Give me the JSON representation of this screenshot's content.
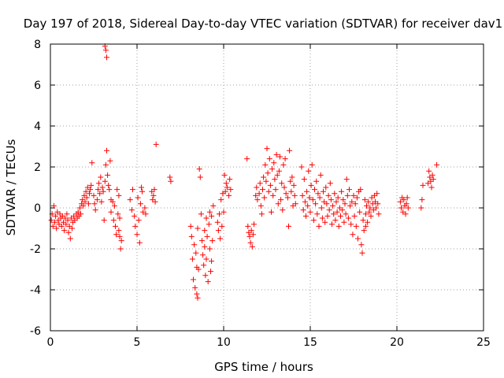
{
  "chart_data": {
    "type": "scatter",
    "title": "Day 197 of 2018, Sidereal Day-to-day VTEC variation (SDTVAR) for receiver dav1",
    "xlabel": "GPS time / hours",
    "ylabel": "SDTVAR / TECUs",
    "xlim": [
      0,
      25
    ],
    "ylim": [
      -6,
      8
    ],
    "xticks": [
      "0",
      "5",
      "10",
      "15",
      "20",
      "25"
    ],
    "yticks": [
      "-6",
      "-4",
      "-2",
      "0",
      "2",
      "4",
      "6",
      "8"
    ],
    "grid": true,
    "marker": "+",
    "color": "#ff0000",
    "series": [
      {
        "name": "dav1",
        "points": [
          [
            0.05,
            -0.6
          ],
          [
            0.1,
            -0.3
          ],
          [
            0.15,
            -0.9
          ],
          [
            0.2,
            0.1
          ],
          [
            0.25,
            -0.7
          ],
          [
            0.3,
            -0.4
          ],
          [
            0.35,
            -1.0
          ],
          [
            0.4,
            -0.2
          ],
          [
            0.45,
            -0.6
          ],
          [
            0.5,
            -0.8
          ],
          [
            0.55,
            -0.3
          ],
          [
            0.6,
            -0.5
          ],
          [
            0.65,
            -0.9
          ],
          [
            0.7,
            -0.4
          ],
          [
            0.75,
            -0.7
          ],
          [
            0.8,
            -1.1
          ],
          [
            0.85,
            -0.5
          ],
          [
            0.9,
            -0.8
          ],
          [
            0.95,
            -0.3
          ],
          [
            1.0,
            -0.6
          ],
          [
            1.05,
            -1.2
          ],
          [
            1.1,
            -0.9
          ],
          [
            1.15,
            -1.5
          ],
          [
            1.2,
            -0.5
          ],
          [
            1.25,
            -1.0
          ],
          [
            1.3,
            -0.7
          ],
          [
            1.35,
            -0.4
          ],
          [
            1.4,
            -0.6
          ],
          [
            1.5,
            -0.3
          ],
          [
            1.55,
            -0.5
          ],
          [
            1.6,
            -0.2
          ],
          [
            1.65,
            -0.4
          ],
          [
            1.7,
            0.0
          ],
          [
            1.75,
            -0.3
          ],
          [
            1.8,
            0.2
          ],
          [
            1.85,
            0.4
          ],
          [
            1.9,
            0.1
          ],
          [
            1.95,
            0.6
          ],
          [
            2.0,
            0.3
          ],
          [
            2.05,
            0.8
          ],
          [
            2.1,
            0.5
          ],
          [
            2.15,
            1.0
          ],
          [
            2.2,
            0.2
          ],
          [
            2.25,
            0.7
          ],
          [
            2.3,
            0.9
          ],
          [
            2.35,
            1.1
          ],
          [
            2.4,
            2.2
          ],
          [
            2.5,
            0.6
          ],
          [
            2.55,
            0.2
          ],
          [
            2.6,
            -0.1
          ],
          [
            2.7,
            0.4
          ],
          [
            2.75,
            0.9
          ],
          [
            2.8,
            1.2
          ],
          [
            2.85,
            0.7
          ],
          [
            2.9,
            1.5
          ],
          [
            2.95,
            0.3
          ],
          [
            3.0,
            1.0
          ],
          [
            3.05,
            0.8
          ],
          [
            3.1,
            -0.6
          ],
          [
            3.15,
            1.3
          ],
          [
            3.2,
            2.1
          ],
          [
            3.25,
            2.8
          ],
          [
            3.3,
            1.6
          ],
          [
            3.35,
            1.1
          ],
          [
            3.4,
            0.9
          ],
          [
            3.45,
            2.3
          ],
          [
            3.5,
            0.4
          ],
          [
            3.15,
            7.9
          ],
          [
            3.2,
            7.7
          ],
          [
            3.25,
            7.35
          ],
          [
            3.5,
            -0.2
          ],
          [
            3.6,
            0.3
          ],
          [
            3.65,
            -0.6
          ],
          [
            3.7,
            0.1
          ],
          [
            3.75,
            -0.9
          ],
          [
            3.8,
            -1.3
          ],
          [
            3.85,
            0.9
          ],
          [
            3.9,
            -0.3
          ],
          [
            3.95,
            -1.1
          ],
          [
            4.0,
            -0.5
          ],
          [
            4.05,
            -2.0
          ],
          [
            4.1,
            -1.6
          ],
          [
            3.95,
            0.6
          ],
          [
            4.0,
            -1.4
          ],
          [
            4.6,
            0.4
          ],
          [
            4.7,
            -0.1
          ],
          [
            4.75,
            0.9
          ],
          [
            4.85,
            -0.4
          ],
          [
            4.9,
            -0.9
          ],
          [
            5.0,
            -1.3
          ],
          [
            5.05,
            0.5
          ],
          [
            5.1,
            -0.6
          ],
          [
            5.15,
            -1.7
          ],
          [
            5.2,
            0.2
          ],
          [
            5.25,
            1.0
          ],
          [
            5.3,
            0.8
          ],
          [
            5.35,
            -0.2
          ],
          [
            5.45,
            0.0
          ],
          [
            5.5,
            -0.3
          ],
          [
            5.85,
            0.8
          ],
          [
            5.9,
            0.4
          ],
          [
            5.95,
            0.6
          ],
          [
            6.0,
            0.9
          ],
          [
            6.05,
            0.3
          ],
          [
            6.1,
            3.1
          ],
          [
            6.9,
            1.5
          ],
          [
            6.95,
            1.3
          ],
          [
            8.1,
            -0.9
          ],
          [
            8.15,
            -1.4
          ],
          [
            8.2,
            -2.5
          ],
          [
            8.25,
            -3.5
          ],
          [
            8.3,
            -1.8
          ],
          [
            8.35,
            -3.9
          ],
          [
            8.4,
            -2.2
          ],
          [
            8.45,
            -4.2
          ],
          [
            8.5,
            -4.4
          ],
          [
            8.55,
            -3.0
          ],
          [
            8.5,
            -1.0
          ],
          [
            8.45,
            -2.9
          ],
          [
            8.6,
            1.9
          ],
          [
            8.65,
            1.5
          ],
          [
            8.7,
            -0.3
          ],
          [
            8.75,
            -1.6
          ],
          [
            8.8,
            -2.3
          ],
          [
            8.85,
            -2.8
          ],
          [
            8.9,
            -1.9
          ],
          [
            8.95,
            -3.3
          ],
          [
            9.0,
            -2.5
          ],
          [
            9.05,
            -1.4
          ],
          [
            9.1,
            -3.6
          ],
          [
            9.15,
            -0.8
          ],
          [
            9.2,
            -2.0
          ],
          [
            9.25,
            -3.1
          ],
          [
            9.3,
            -0.4
          ],
          [
            9.35,
            -1.6
          ],
          [
            9.4,
            0.1
          ],
          [
            9.0,
            -0.5
          ],
          [
            8.9,
            -1.1
          ],
          [
            9.2,
            -0.2
          ],
          [
            9.3,
            -2.6
          ],
          [
            9.65,
            -0.7
          ],
          [
            9.7,
            -1.1
          ],
          [
            9.75,
            -0.3
          ],
          [
            9.8,
            -1.5
          ],
          [
            9.85,
            0.4
          ],
          [
            9.9,
            -0.9
          ],
          [
            9.95,
            0.7
          ],
          [
            10.0,
            -0.2
          ],
          [
            10.05,
            1.6
          ],
          [
            10.1,
            0.8
          ],
          [
            10.15,
            1.2
          ],
          [
            10.2,
            1.0
          ],
          [
            10.3,
            0.6
          ],
          [
            10.35,
            1.4
          ],
          [
            10.4,
            0.9
          ],
          [
            11.35,
            2.4
          ],
          [
            11.4,
            -0.9
          ],
          [
            11.45,
            -1.2
          ],
          [
            11.5,
            -1.4
          ],
          [
            11.55,
            -1.7
          ],
          [
            11.6,
            -1.1
          ],
          [
            11.65,
            -1.9
          ],
          [
            11.7,
            -1.3
          ],
          [
            11.75,
            -0.8
          ],
          [
            11.85,
            0.6
          ],
          [
            11.9,
            1.0
          ],
          [
            11.95,
            0.4
          ],
          [
            12.05,
            0.7
          ],
          [
            12.1,
            1.2
          ],
          [
            12.15,
            0.1
          ],
          [
            12.2,
            -0.3
          ],
          [
            12.25,
            0.9
          ],
          [
            12.3,
            1.5
          ],
          [
            12.35,
            0.5
          ],
          [
            12.4,
            2.1
          ],
          [
            12.45,
            1.3
          ],
          [
            12.5,
            2.9
          ],
          [
            12.55,
            1.7
          ],
          [
            12.6,
            0.8
          ],
          [
            12.65,
            2.4
          ],
          [
            12.7,
            1.1
          ],
          [
            12.75,
            -0.2
          ],
          [
            12.8,
            1.9
          ],
          [
            12.85,
            0.6
          ],
          [
            12.9,
            2.2
          ],
          [
            12.95,
            1.4
          ],
          [
            13.0,
            0.9
          ],
          [
            13.05,
            2.6
          ],
          [
            13.1,
            1.6
          ],
          [
            13.15,
            0.2
          ],
          [
            13.2,
            1.8
          ],
          [
            13.25,
            2.5
          ],
          [
            13.3,
            0.4
          ],
          [
            13.35,
            1.2
          ],
          [
            13.4,
            -0.1
          ],
          [
            13.45,
            2.1
          ],
          [
            13.5,
            1.0
          ],
          [
            13.55,
            2.4
          ],
          [
            13.6,
            0.7
          ],
          [
            13.7,
            0.5
          ],
          [
            13.75,
            -0.9
          ],
          [
            13.8,
            2.8
          ],
          [
            13.85,
            1.3
          ],
          [
            13.9,
            0.8
          ],
          [
            13.95,
            1.5
          ],
          [
            14.0,
            0.1
          ],
          [
            14.05,
            1.1
          ],
          [
            14.1,
            0.6
          ],
          [
            14.15,
            0.2
          ],
          [
            14.5,
            2.0
          ],
          [
            14.55,
            0.6
          ],
          [
            14.6,
            -0.1
          ],
          [
            14.65,
            1.4
          ],
          [
            14.7,
            0.3
          ],
          [
            14.75,
            -0.4
          ],
          [
            14.8,
            0.8
          ],
          [
            14.85,
            0.1
          ],
          [
            14.9,
            1.8
          ],
          [
            14.95,
            0.5
          ],
          [
            15.0,
            -0.2
          ],
          [
            15.05,
            1.1
          ],
          [
            15.1,
            2.1
          ],
          [
            15.15,
            0.4
          ],
          [
            15.2,
            -0.6
          ],
          [
            15.25,
            0.9
          ],
          [
            15.3,
            0.2
          ],
          [
            15.35,
            1.3
          ],
          [
            15.4,
            -0.3
          ],
          [
            15.45,
            0.7
          ],
          [
            15.5,
            -0.9
          ],
          [
            15.55,
            0.5
          ],
          [
            15.6,
            1.6
          ],
          [
            15.65,
            0.0
          ],
          [
            15.7,
            -0.5
          ],
          [
            15.75,
            0.8
          ],
          [
            15.8,
            0.3
          ],
          [
            15.85,
            -0.7
          ],
          [
            15.9,
            1.0
          ],
          [
            15.95,
            0.2
          ],
          [
            16.0,
            -0.4
          ],
          [
            16.05,
            0.6
          ],
          [
            16.1,
            -0.1
          ],
          [
            16.15,
            1.2
          ],
          [
            16.2,
            0.4
          ],
          [
            16.25,
            -0.8
          ],
          [
            16.3,
            0.1
          ],
          [
            16.35,
            -0.3
          ],
          [
            16.4,
            0.7
          ],
          [
            16.45,
            -0.6
          ],
          [
            16.5,
            0.3
          ],
          [
            16.55,
            -0.2
          ],
          [
            16.6,
            0.5
          ],
          [
            16.65,
            -0.9
          ],
          [
            16.7,
            0.0
          ],
          [
            16.75,
            -0.4
          ],
          [
            16.8,
            0.8
          ],
          [
            16.85,
            -0.1
          ],
          [
            16.9,
            0.4
          ],
          [
            16.95,
            -0.7
          ],
          [
            17.0,
            0.2
          ],
          [
            17.05,
            -0.3
          ],
          [
            17.1,
            1.4
          ],
          [
            17.15,
            0.6
          ],
          [
            17.2,
            -0.5
          ],
          [
            17.25,
            0.9
          ],
          [
            17.3,
            0.1
          ],
          [
            17.35,
            -0.8
          ],
          [
            17.4,
            0.3
          ],
          [
            17.45,
            -1.3
          ],
          [
            17.5,
            0.6
          ],
          [
            17.55,
            -0.4
          ],
          [
            17.6,
            0.2
          ],
          [
            17.65,
            -0.9
          ],
          [
            17.7,
            0.5
          ],
          [
            17.75,
            -1.5
          ],
          [
            17.8,
            0.8
          ],
          [
            17.85,
            -0.2
          ],
          [
            17.9,
            0.9
          ],
          [
            17.95,
            -1.8
          ],
          [
            18.0,
            -2.2
          ],
          [
            18.05,
            -0.6
          ],
          [
            18.1,
            -1.1
          ],
          [
            18.15,
            0.4
          ],
          [
            18.2,
            -0.3
          ],
          [
            18.25,
            0.1
          ],
          [
            18.3,
            -0.7
          ],
          [
            18.35,
            0.3
          ],
          [
            18.4,
            -0.2
          ],
          [
            18.45,
            0.0
          ],
          [
            18.5,
            -0.4
          ],
          [
            18.55,
            0.5
          ],
          [
            18.6,
            0.2
          ],
          [
            18.65,
            -0.1
          ],
          [
            18.7,
            0.6
          ],
          [
            18.75,
            0.3
          ],
          [
            18.8,
            0.0
          ],
          [
            18.85,
            0.7
          ],
          [
            18.9,
            0.2
          ],
          [
            18.95,
            -0.3
          ],
          [
            18.2,
            -0.9
          ],
          [
            20.2,
            0.3
          ],
          [
            20.25,
            0.0
          ],
          [
            20.3,
            0.5
          ],
          [
            20.35,
            -0.2
          ],
          [
            20.4,
            0.4
          ],
          [
            20.45,
            0.1
          ],
          [
            20.5,
            -0.3
          ],
          [
            20.55,
            0.2
          ],
          [
            20.6,
            0.5
          ],
          [
            20.65,
            0.0
          ],
          [
            21.4,
            0.0
          ],
          [
            21.45,
            0.4
          ],
          [
            21.5,
            1.1
          ],
          [
            21.8,
            1.2
          ],
          [
            21.85,
            1.8
          ],
          [
            21.9,
            1.5
          ],
          [
            21.95,
            1.3
          ],
          [
            22.0,
            1.0
          ],
          [
            22.05,
            1.6
          ],
          [
            22.1,
            1.4
          ],
          [
            22.3,
            2.1
          ]
        ]
      }
    ]
  }
}
